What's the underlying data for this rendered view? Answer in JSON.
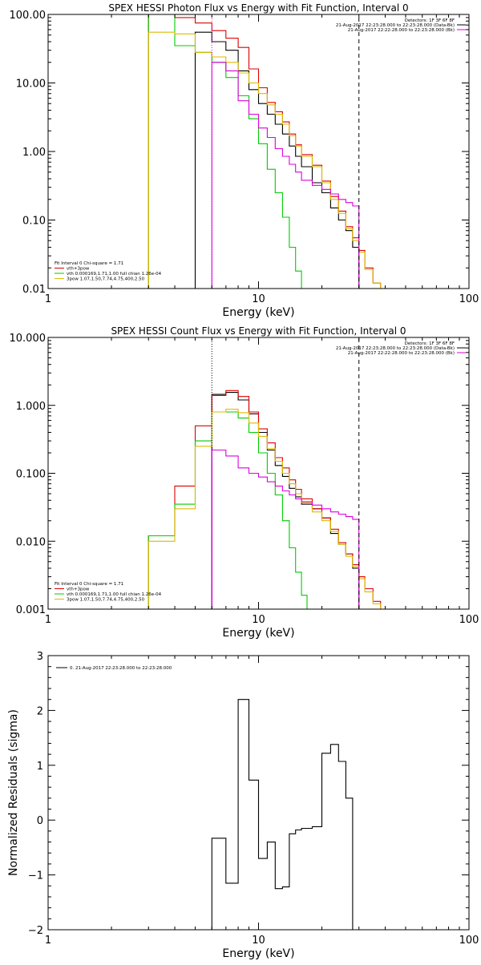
{
  "chart_data": [
    {
      "type": "line",
      "title": "SPEX HESSI Photon Flux vs Energy with Fit Function, Interval 0",
      "xlabel": "Energy (keV)",
      "ylabel": "",
      "xscale": "log",
      "yscale": "log",
      "xlim": [
        1,
        100
      ],
      "ylim": [
        0.01,
        100
      ],
      "xticks": [
        "1",
        "10",
        "100"
      ],
      "yticks": [
        "0.01",
        "0.10",
        "1.00",
        "10.00",
        "100.00"
      ],
      "vlines": [
        {
          "x": 6,
          "style": "dotted",
          "color": "#dd00dd"
        },
        {
          "x": 30,
          "style": "dashed",
          "color": "#000000"
        }
      ],
      "legend_top_right": [
        {
          "text": "Detectors: 1F 3F 6F 8F",
          "color": "#000000"
        },
        {
          "text": "21-Aug-2017 22:23:28.000 to 22:23:28.000 (Data-Bk)",
          "color": "#000000"
        },
        {
          "text": "21-Aug-2017 22:22:28.000 to 22:23:28.000 (Bk)",
          "color": "#dd00dd"
        }
      ],
      "legend_bottom_left": [
        {
          "text": "Fit Interval 0   Chi-square = 1.71",
          "color": "#000000"
        },
        {
          "text": "vth+3pow",
          "color": "#dd0000"
        },
        {
          "text": "vth 0.000169,1.71,1.00  full chian 1.26e-04",
          "color": "#00cc00"
        },
        {
          "text": "3pow 1.07,1.50,7.74,4.75,400,2.50",
          "color": "#ddbb00"
        }
      ],
      "series": [
        {
          "color": "#000000",
          "edges": [
            5,
            6,
            7,
            8,
            9,
            10,
            11,
            12,
            13,
            14,
            15,
            16,
            18,
            20,
            22,
            24,
            26,
            28,
            30
          ],
          "values": [
            55,
            40,
            30,
            15,
            8,
            5,
            3.5,
            2.5,
            1.8,
            1.2,
            0.85,
            0.6,
            0.35,
            0.25,
            0.15,
            0.1,
            0.07,
            0.04
          ]
        },
        {
          "color": "#dd0000",
          "edges": [
            3,
            4,
            5,
            6,
            7,
            8,
            9,
            10,
            11,
            12,
            13,
            14,
            15,
            16,
            18,
            20,
            22,
            24,
            26,
            28,
            30,
            32,
            35,
            38,
            40
          ],
          "values": [
            100,
            90,
            75,
            58,
            45,
            33,
            16,
            8.5,
            5.2,
            3.8,
            2.7,
            1.8,
            1.25,
            0.9,
            0.63,
            0.37,
            0.22,
            0.135,
            0.08,
            0.055,
            0.036,
            0.02,
            0.012,
            0.008
          ]
        },
        {
          "color": "#00cc00",
          "edges": [
            3,
            4,
            5,
            6,
            7,
            8,
            9,
            10,
            11,
            12,
            13,
            14,
            15,
            16,
            17
          ],
          "values": [
            100,
            35,
            28,
            20,
            12,
            6.5,
            3,
            1.3,
            0.55,
            0.25,
            0.11,
            0.04,
            0.018,
            0.01
          ]
        },
        {
          "color": "#ddbb00",
          "edges": [
            3,
            4,
            5,
            6,
            7,
            8,
            9,
            10,
            11,
            12,
            13,
            14,
            15,
            16,
            18,
            20,
            22,
            24,
            26,
            28,
            30,
            32,
            35,
            38,
            40
          ],
          "values": [
            55,
            52,
            28,
            24,
            20,
            14,
            10,
            7,
            4.8,
            3.5,
            2.5,
            1.7,
            1.2,
            0.85,
            0.6,
            0.35,
            0.2,
            0.125,
            0.075,
            0.05,
            0.034,
            0.019,
            0.012,
            0.008
          ]
        },
        {
          "color": "#dd00dd",
          "edges": [
            6,
            7,
            8,
            9,
            10,
            11,
            12,
            13,
            14,
            15,
            16,
            18,
            20,
            22,
            24,
            26,
            28,
            30
          ],
          "values": [
            20,
            15,
            5.5,
            3.5,
            2.2,
            1.6,
            1.1,
            0.85,
            0.65,
            0.5,
            0.38,
            0.32,
            0.28,
            0.24,
            0.2,
            0.18,
            0.16
          ]
        }
      ]
    },
    {
      "type": "line",
      "title": "SPEX HESSI Count Flux vs Energy with Fit Function, Interval 0",
      "xlabel": "Energy (keV)",
      "ylabel": "",
      "xscale": "log",
      "yscale": "log",
      "xlim": [
        1,
        100
      ],
      "ylim": [
        0.001,
        10
      ],
      "xticks": [
        "1",
        "10",
        "100"
      ],
      "yticks": [
        "0.001",
        "0.010",
        "0.100",
        "1.000",
        "10.000"
      ],
      "vlines": [
        {
          "x": 6,
          "style": "dotted",
          "color": "#000000"
        },
        {
          "x": 6,
          "style": "solid",
          "color": "#dd00dd",
          "from": 0.001,
          "to": 0.22
        },
        {
          "x": 30,
          "style": "dashed",
          "color": "#000000"
        }
      ],
      "legend_top_right": [
        {
          "text": "Detectors: 1F 3F 6F 8F",
          "color": "#000000"
        },
        {
          "text": "21-Aug-2017 22:23:28.000 to 22:23:28.000 (Data-Bk)",
          "color": "#000000"
        },
        {
          "text": "21-Aug-2017 22:22:28.000 to 22:23:28.000 (Bk)",
          "color": "#dd00dd"
        }
      ],
      "legend_bottom_left": [
        {
          "text": "Fit Interval 0   Chi-square = 1.71",
          "color": "#000000"
        },
        {
          "text": "vth+3pow",
          "color": "#dd0000"
        },
        {
          "text": "vth 0.000169,1.71,1.00  full chian 1.26e-04",
          "color": "#00cc00"
        },
        {
          "text": "3pow 1.07,1.50,7.74,4.75,400,2.50",
          "color": "#ddbb00"
        }
      ],
      "series": [
        {
          "color": "#000000",
          "edges": [
            6,
            7,
            8,
            9,
            10,
            11,
            12,
            13,
            14,
            15,
            16,
            18,
            20,
            22,
            24,
            26,
            28,
            30
          ],
          "values": [
            1.45,
            1.55,
            1.2,
            0.75,
            0.4,
            0.22,
            0.13,
            0.09,
            0.06,
            0.045,
            0.035,
            0.03,
            0.022,
            0.013,
            0.009,
            0.0065,
            0.004
          ]
        },
        {
          "color": "#dd0000",
          "edges": [
            3,
            4,
            5,
            6,
            7,
            8,
            9,
            10,
            11,
            12,
            13,
            14,
            15,
            16,
            18,
            20,
            22,
            24,
            26,
            28,
            30,
            32,
            35,
            38,
            40
          ],
          "values": [
            0.012,
            0.065,
            0.5,
            1.4,
            1.65,
            1.35,
            0.8,
            0.45,
            0.28,
            0.17,
            0.12,
            0.08,
            0.058,
            0.042,
            0.03,
            0.022,
            0.015,
            0.0095,
            0.0065,
            0.0045,
            0.003,
            0.002,
            0.0013,
            0.001
          ]
        },
        {
          "color": "#00cc00",
          "edges": [
            3,
            4,
            5,
            6,
            7,
            8,
            9,
            10,
            11,
            12,
            13,
            14,
            15,
            16,
            17
          ],
          "values": [
            0.012,
            0.035,
            0.3,
            0.8,
            0.8,
            0.65,
            0.4,
            0.2,
            0.1,
            0.048,
            0.02,
            0.008,
            0.0035,
            0.0016
          ]
        },
        {
          "color": "#ddbb00",
          "edges": [
            3,
            4,
            5,
            6,
            7,
            8,
            9,
            10,
            11,
            12,
            13,
            14,
            15,
            16,
            18,
            20,
            22,
            24,
            26,
            28,
            30,
            32,
            35,
            38,
            40
          ],
          "values": [
            0.01,
            0.03,
            0.25,
            0.8,
            0.88,
            0.78,
            0.55,
            0.35,
            0.23,
            0.15,
            0.1,
            0.07,
            0.05,
            0.037,
            0.027,
            0.02,
            0.014,
            0.009,
            0.006,
            0.0042,
            0.0028,
            0.0018,
            0.0012,
            0.001
          ]
        },
        {
          "color": "#dd00dd",
          "edges": [
            6,
            7,
            8,
            9,
            10,
            11,
            12,
            13,
            14,
            15,
            16,
            18,
            20,
            22,
            24,
            26,
            28,
            30
          ],
          "values": [
            0.22,
            0.18,
            0.12,
            0.1,
            0.088,
            0.075,
            0.065,
            0.055,
            0.048,
            0.042,
            0.038,
            0.034,
            0.03,
            0.027,
            0.025,
            0.023,
            0.021
          ]
        }
      ]
    },
    {
      "type": "line",
      "title": "",
      "xlabel": "Energy (keV)",
      "ylabel": "Normalized Residuals (sigma)",
      "xscale": "log",
      "yscale": "linear",
      "xlim": [
        1,
        100
      ],
      "ylim": [
        -2,
        3
      ],
      "xticks": [
        "1",
        "10",
        "100"
      ],
      "yticks": [
        "−2",
        "−1",
        "0",
        "1",
        "2",
        "3"
      ],
      "legend_top_left": [
        {
          "text": "0. 21-Aug-2017 22:23:28.000 to 22:23:28.000",
          "color": "#000000"
        }
      ],
      "series": [
        {
          "color": "#000000",
          "edges": [
            6,
            7,
            8,
            9,
            10,
            11,
            12,
            13,
            14,
            15,
            16,
            18,
            20,
            22,
            24,
            26,
            28,
            30
          ],
          "values": [
            -0.33,
            -1.15,
            2.2,
            0.73,
            -0.7,
            -0.4,
            -1.25,
            -1.22,
            -0.25,
            -0.18,
            -0.15,
            -0.12,
            1.22,
            1.38,
            1.07,
            0.4,
            -2.1
          ]
        }
      ]
    }
  ]
}
